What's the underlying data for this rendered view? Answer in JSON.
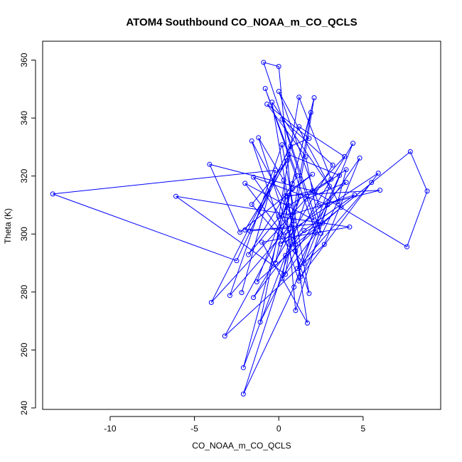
{
  "chart_data": {
    "type": "line",
    "title": "ATOM4 Southbound CO_NOAA_m_CO_QCLS",
    "xlabel": "CO_NOAA_m_CO_QCLS",
    "ylabel": "Theta (K)",
    "xlim": [
      -14.0,
      9.6
    ],
    "ylim": [
      239.5,
      366.5
    ],
    "x_ticks": [
      -10,
      -5,
      0,
      5
    ],
    "y_ticks": [
      240,
      260,
      280,
      300,
      320,
      340,
      360
    ],
    "grid": false,
    "legend": "none",
    "series_color": "#0000ff",
    "series": [
      {
        "points": [
          [
            -2.2,
            279.8
          ],
          [
            -0.2,
            322.0
          ],
          [
            -13.4,
            313.8
          ],
          [
            -2.5,
            290.8
          ],
          [
            1.2,
            337.0
          ],
          [
            3.9,
            326.7
          ],
          [
            -4.0,
            276.4
          ],
          [
            0.7,
            330.3
          ],
          [
            1.8,
            333.0
          ],
          [
            -0.7,
            344.8
          ],
          [
            1.6,
            326.6
          ],
          [
            2.5,
            300.2
          ],
          [
            -0.9,
            359.2
          ],
          [
            0.0,
            357.8
          ],
          [
            1.0,
            296.5
          ],
          [
            7.8,
            328.4
          ],
          [
            8.8,
            314.8
          ],
          [
            7.6,
            295.6
          ],
          [
            2.1,
            314.7
          ],
          [
            4.0,
            322.2
          ],
          [
            3.5,
            311.2
          ],
          [
            1.2,
            283.8
          ],
          [
            -1.6,
            332.1
          ],
          [
            0.9,
            304.5
          ],
          [
            -2.9,
            278.8
          ],
          [
            0.2,
            330.8
          ],
          [
            1.8,
            279.5
          ],
          [
            -1.2,
            333.2
          ],
          [
            0.3,
            318.6
          ],
          [
            1.0,
            273.6
          ],
          [
            2.9,
            310.1
          ],
          [
            -1.5,
            319.6
          ],
          [
            0.6,
            301.9
          ],
          [
            -2.0,
            301.4
          ],
          [
            0.5,
            325.3
          ],
          [
            -1.6,
            310.2
          ],
          [
            1.5,
            289.8
          ],
          [
            4.4,
            331.3
          ],
          [
            0.4,
            292.6
          ],
          [
            -2.1,
            253.9
          ],
          [
            1.9,
            341.9
          ],
          [
            0.2,
            284.6
          ],
          [
            2.2,
            300.4
          ],
          [
            -0.8,
            350.2
          ],
          [
            1.1,
            320.1
          ],
          [
            -1.8,
            292.9
          ],
          [
            0.6,
            309.8
          ],
          [
            3.1,
            318.9
          ],
          [
            1.2,
            347.2
          ],
          [
            0.0,
            306.0
          ],
          [
            4.2,
            302.4
          ],
          [
            -1.0,
            297.2
          ],
          [
            1.7,
            269.3
          ],
          [
            0.5,
            312.8
          ],
          [
            2.0,
            314.9
          ],
          [
            -4.1,
            324.0
          ],
          [
            -2.3,
            300.6
          ],
          [
            2.0,
            320.6
          ],
          [
            0.8,
            315.6
          ],
          [
            -1.3,
            283.5
          ],
          [
            3.7,
            309.2
          ],
          [
            0.0,
            349.2
          ],
          [
            2.4,
            309.8
          ],
          [
            6.0,
            315.1
          ],
          [
            0.4,
            313.2
          ],
          [
            -1.1,
            269.6
          ],
          [
            1.0,
            294.1
          ],
          [
            4.8,
            326.2
          ],
          [
            2.7,
            296.4
          ],
          [
            -3.2,
            264.8
          ],
          [
            1.3,
            313.1
          ],
          [
            -0.2,
            290.0
          ],
          [
            0.8,
            317.4
          ],
          [
            2.1,
            347.0
          ],
          [
            0.4,
            286.1
          ],
          [
            -6.1,
            313.0
          ],
          [
            0.7,
            306.6
          ],
          [
            4.5,
            313.5
          ],
          [
            1.5,
            301.2
          ],
          [
            -1.5,
            278.1
          ],
          [
            3.2,
            323.8
          ],
          [
            0.2,
            339.6
          ],
          [
            2.1,
            304.8
          ],
          [
            -2.0,
            317.5
          ],
          [
            0.3,
            299.6
          ],
          [
            5.9,
            321.0
          ],
          [
            1.3,
            285.3
          ],
          [
            -0.4,
            345.5
          ],
          [
            3.0,
            316.5
          ],
          [
            0.9,
            281.7
          ],
          [
            -2.1,
            244.8
          ],
          [
            1.6,
            312.0
          ],
          [
            4.0,
            317.8
          ],
          [
            0.1,
            296.6
          ],
          [
            2.6,
            303.8
          ],
          [
            -1.7,
            301.0
          ],
          [
            0.6,
            327.4
          ],
          [
            3.6,
            320.2
          ],
          [
            1.1,
            288.1
          ],
          [
            5.5,
            317.8
          ]
        ]
      }
    ]
  }
}
